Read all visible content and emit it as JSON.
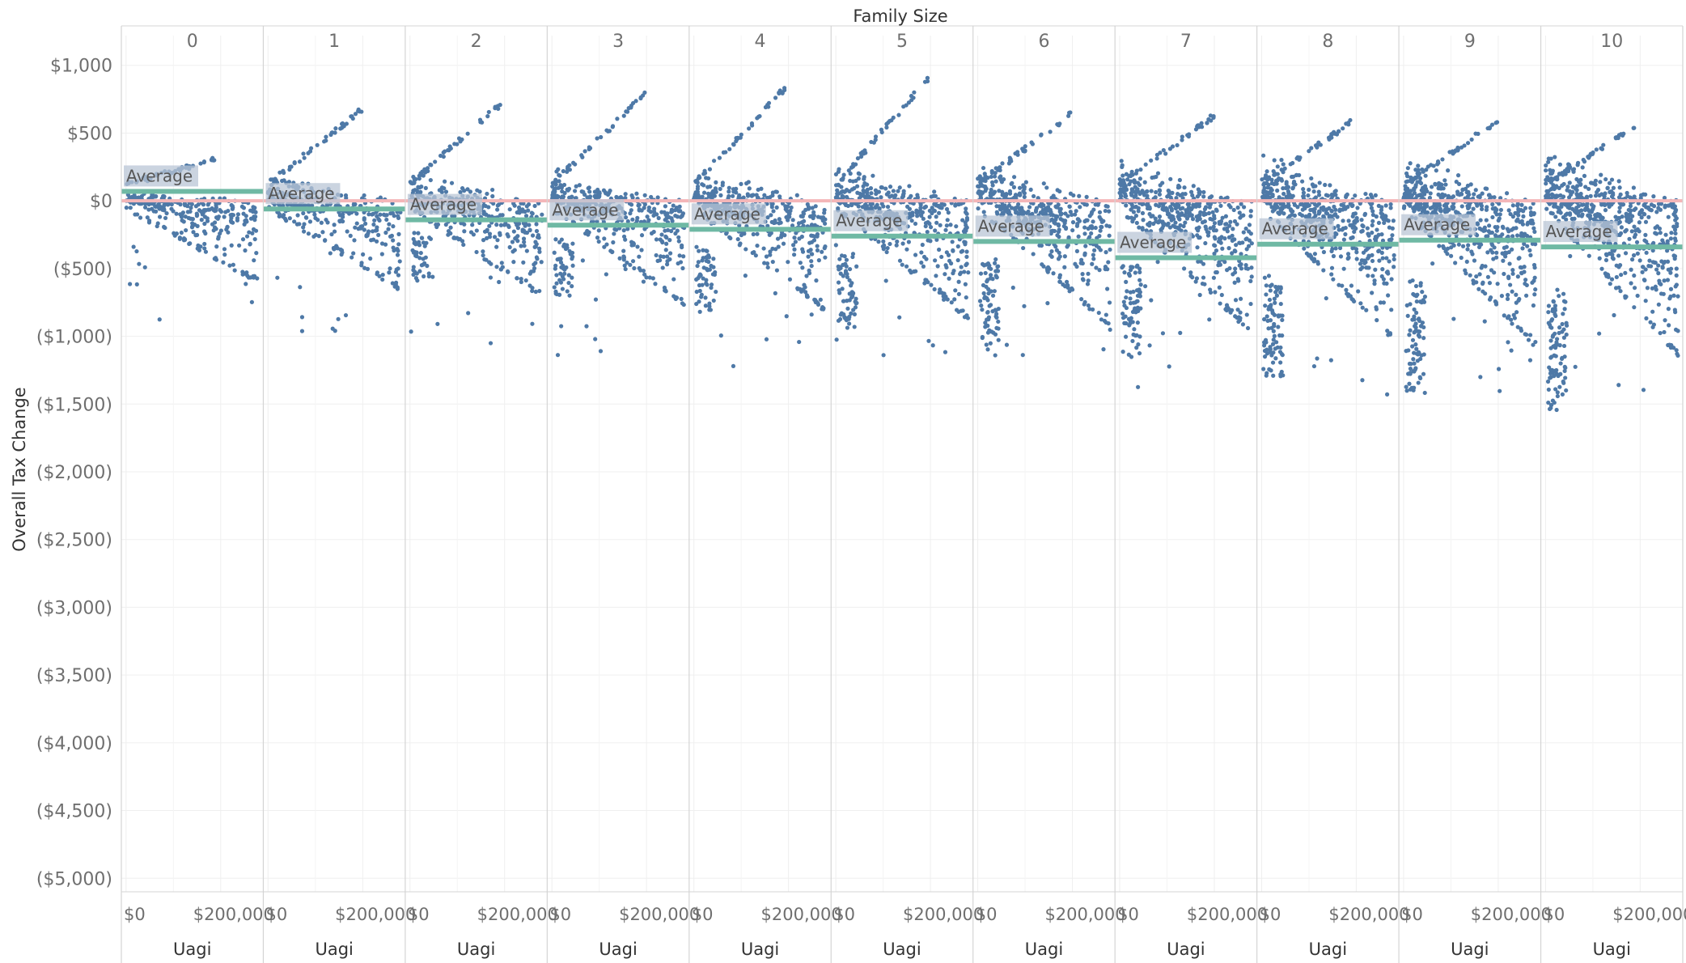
{
  "chart_data": {
    "type": "scatter",
    "column_title": "Family Size",
    "columns": [
      "0",
      "1",
      "2",
      "3",
      "4",
      "5",
      "6",
      "7",
      "8",
      "9",
      "10"
    ],
    "ylabel": "Overall Tax Change",
    "xlabel": "Uagi",
    "y_ticks": [
      {
        "value": 1000,
        "label": "$1,000"
      },
      {
        "value": 500,
        "label": "$500"
      },
      {
        "value": 0,
        "label": "$0"
      },
      {
        "value": -500,
        "label": "($500)"
      },
      {
        "value": -1000,
        "label": "($1,000)"
      },
      {
        "value": -1500,
        "label": "($1,500)"
      },
      {
        "value": -2000,
        "label": "($2,000)"
      },
      {
        "value": -2500,
        "label": "($2,500)"
      },
      {
        "value": -3000,
        "label": "($3,000)"
      },
      {
        "value": -3500,
        "label": "($3,500)"
      },
      {
        "value": -4000,
        "label": "($4,000)"
      },
      {
        "value": -4500,
        "label": "($4,500)"
      },
      {
        "value": -5000,
        "label": "($5,000)"
      }
    ],
    "x_ticks": [
      {
        "value": 0,
        "label": "$0"
      },
      {
        "value": 200000,
        "label": "$200,000"
      }
    ],
    "ylim": [
      -5100,
      1100
    ],
    "xlim": [
      -10000,
      290000
    ],
    "reference_line": {
      "value": 0,
      "color": "#f4b6b8"
    },
    "average_label": "Average",
    "average_color": "#6fb9a4",
    "point_color": "#4e79a7",
    "averages": [
      70,
      -60,
      -140,
      -180,
      -210,
      -260,
      -300,
      -420,
      -320,
      -290,
      -340
    ],
    "grid": true,
    "legend": "none"
  }
}
